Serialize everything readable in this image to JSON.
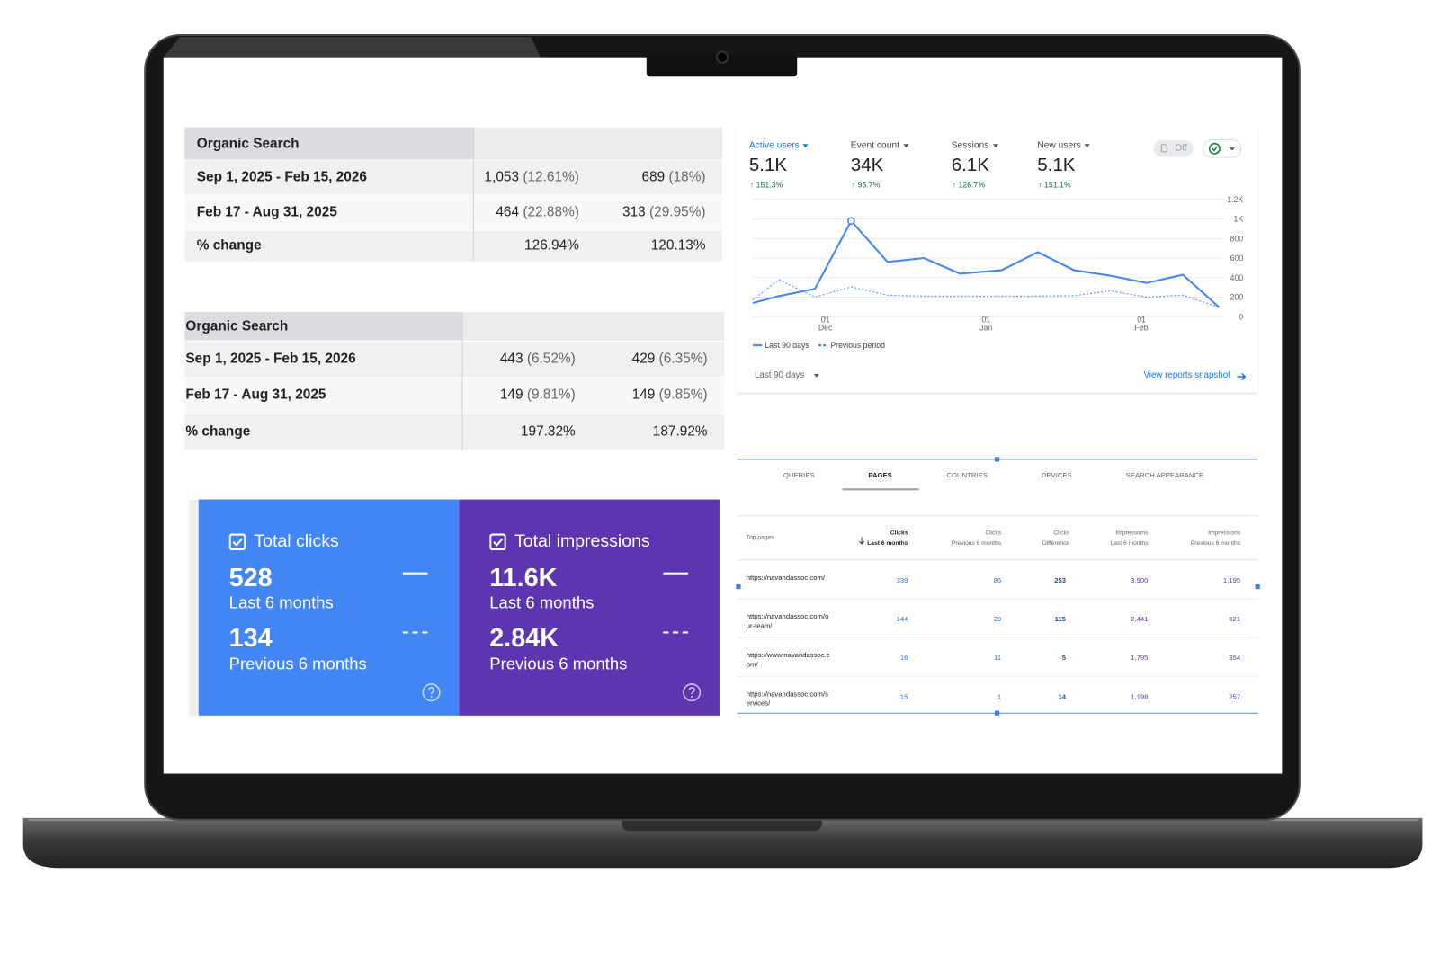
{
  "tables": [
    {
      "title": "Organic Search",
      "rows": [
        {
          "label": "Sep 1, 2025 - Feb 15, 2026",
          "cells": [
            {
              "value": "1,053",
              "note": "(12.61%)"
            },
            {
              "value": "689",
              "note": "(18%)"
            }
          ]
        },
        {
          "label": "Feb 17 - Aug 31, 2025",
          "cells": [
            {
              "value": "464",
              "note": "(22.88%)"
            },
            {
              "value": "313",
              "note": "(29.95%)"
            }
          ]
        },
        {
          "label": "% change",
          "cells": [
            {
              "value": "126.94%"
            },
            {
              "value": "120.13%"
            }
          ]
        }
      ]
    },
    {
      "title": "Organic Search",
      "rows": [
        {
          "label": "Sep 1, 2025 - Feb 15, 2026",
          "cells": [
            {
              "value": "443",
              "note": "(6.52%)"
            },
            {
              "value": "429",
              "note": "(6.35%)"
            }
          ]
        },
        {
          "label": "Feb 17 - Aug 31, 2025",
          "cells": [
            {
              "value": "149",
              "note": "(9.81%)"
            },
            {
              "value": "149",
              "note": "(9.85%)"
            }
          ]
        },
        {
          "label": "% change",
          "cells": [
            {
              "value": "197.32%"
            },
            {
              "value": "187.92%"
            }
          ]
        }
      ]
    }
  ],
  "cards": [
    {
      "label": "Total clicks",
      "current": "528",
      "current_label": "Last 6 months",
      "previous": "134",
      "previous_label": "Previous 6 months",
      "color": "#4285f4"
    },
    {
      "label": "Total impressions",
      "current": "11.6K",
      "current_label": "Last 6 months",
      "previous": "2.84K",
      "previous_label": "Previous 6 months",
      "color": "#5e35b1"
    }
  ],
  "analytics": {
    "metrics": [
      {
        "name": "Active users",
        "value": "5.1K",
        "change": "↑ 151.3%"
      },
      {
        "name": "Event count",
        "value": "34K",
        "change": "↑ 95.7%"
      },
      {
        "name": "Sessions",
        "value": "6.1K",
        "change": "↑ 126.7%"
      },
      {
        "name": "New users",
        "value": "5.1K",
        "change": "↑ 151.1%"
      }
    ],
    "toggle": "Off",
    "chart_data": {
      "type": "line",
      "x": [
        0,
        5,
        12,
        19,
        26,
        33,
        40,
        48,
        55,
        62,
        69,
        76,
        83,
        90
      ],
      "xlim": [
        0,
        90
      ],
      "xticks": [
        {
          "value": 14,
          "label": "01",
          "month": "Dec"
        },
        {
          "value": 45,
          "label": "01",
          "month": "Jan"
        },
        {
          "value": 75,
          "label": "01",
          "month": "Feb"
        }
      ],
      "series": [
        {
          "name": "Last 90 days",
          "color": "#4285f4",
          "line_style": "solid",
          "values": [
            140,
            210,
            285,
            980,
            560,
            600,
            440,
            475,
            660,
            475,
            420,
            345,
            430,
            95
          ]
        },
        {
          "name": "Previous period",
          "color": "#4285f4",
          "line_style": "dashed",
          "values": [
            170,
            380,
            200,
            305,
            220,
            210,
            210,
            210,
            210,
            215,
            265,
            200,
            220,
            95
          ]
        }
      ],
      "ylim": [
        0,
        1200
      ],
      "yticks": [
        0,
        200,
        400,
        600,
        800,
        {
          "value": 1000,
          "label": "1K"
        },
        {
          "value": 1200,
          "label": "1.2K"
        }
      ],
      "grid": true
    },
    "range": "Last 90 days",
    "link": "View reports snapshot"
  },
  "search_console": {
    "tabs": [
      "QUERIES",
      "PAGES",
      "COUNTRIES",
      "DEVICES",
      "SEARCH APPEARANCE"
    ],
    "active_tab": 1,
    "table": {
      "first_header": "Top pages",
      "columns": [
        {
          "name": "Clicks",
          "sub": "Last 6 months"
        },
        {
          "name": "Clicks",
          "sub": "Previous 6 months"
        },
        {
          "name": "Clicks",
          "sub": "Difference"
        },
        {
          "name": "Impressions",
          "sub": "Last 6 months"
        },
        {
          "name": "Impressions",
          "sub": "Previous 6 months"
        }
      ],
      "rows": [
        {
          "page": "https://navandassoc.com/",
          "values": [
            "339",
            "86",
            "253",
            "3,900",
            "1,195"
          ]
        },
        {
          "page": "https://navandassoc.com/our-team/",
          "values": [
            "144",
            "29",
            "115",
            "2,441",
            "621"
          ]
        },
        {
          "page": "https://www.navandassoc.com/",
          "values": [
            "16",
            "11",
            "5",
            "1,795",
            "354"
          ]
        },
        {
          "page": "https://navandassoc.com/services/",
          "values": [
            "15",
            "1",
            "14",
            "1,198",
            "257"
          ]
        }
      ]
    }
  }
}
